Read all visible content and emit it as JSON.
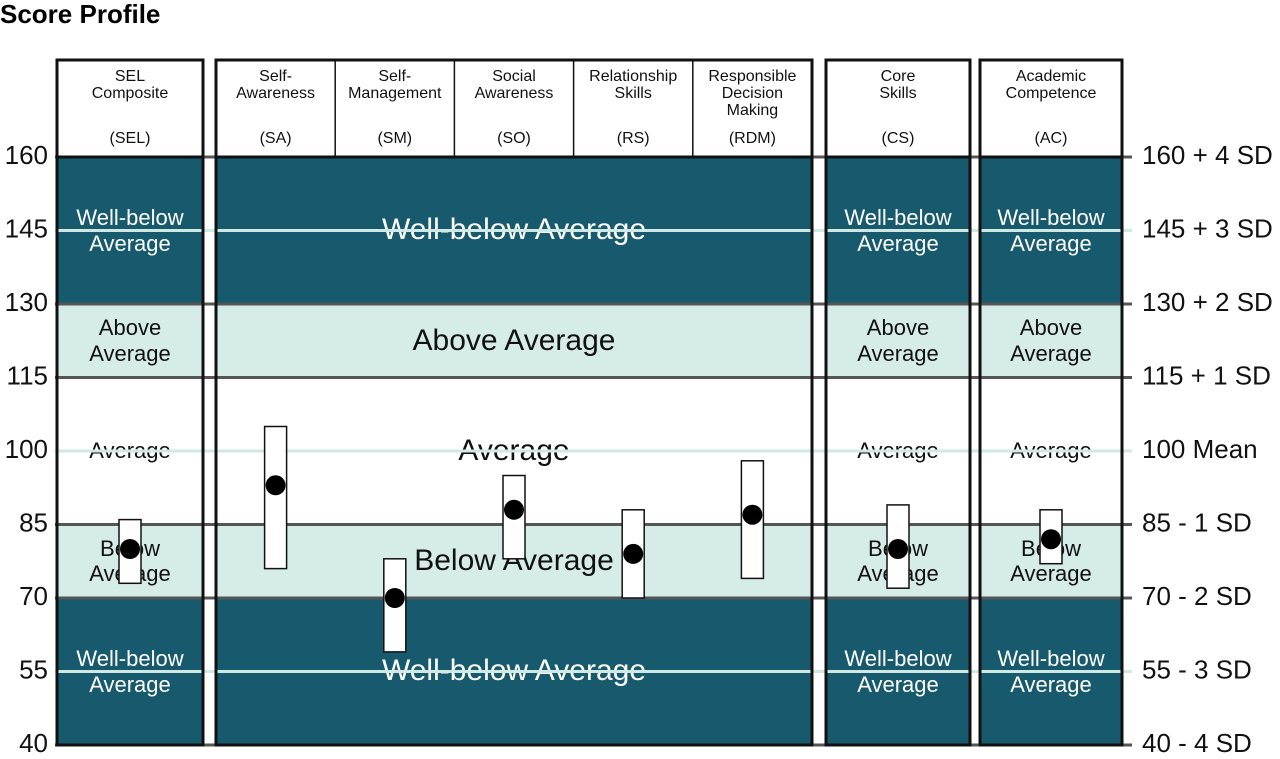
{
  "title": "Score Profile",
  "chart_data": {
    "type": "range-dot",
    "ylim": [
      40,
      160
    ],
    "yticks": [
      160,
      145,
      130,
      115,
      100,
      85,
      70,
      55,
      40
    ],
    "y2lim": [
      40,
      160
    ],
    "y2ticks": [
      {
        "value": 160,
        "label": "160 + 4 SD"
      },
      {
        "value": 145,
        "label": "145 + 3 SD"
      },
      {
        "value": 130,
        "label": "130 + 2 SD"
      },
      {
        "value": 115,
        "label": "115 + 1 SD"
      },
      {
        "value": 100,
        "label": "100 Mean"
      },
      {
        "value": 85,
        "label": "85 - 1 SD"
      },
      {
        "value": 70,
        "label": "70 - 2 SD"
      },
      {
        "value": 55,
        "label": "55 - 3 SD"
      },
      {
        "value": 40,
        "label": "40 - 4 SD"
      }
    ],
    "grid": true,
    "bands": [
      {
        "label": "Well-below Average",
        "range": [
          130,
          160
        ],
        "color": "#175a6e",
        "text_color": "#ffffff"
      },
      {
        "label": "Above Average",
        "range": [
          115,
          130
        ],
        "color": "#d6ece7",
        "text_color": "#111111"
      },
      {
        "label": "Average",
        "range": [
          85,
          115
        ],
        "color": "#ffffff",
        "text_color": "#111111"
      },
      {
        "label": "Below Average",
        "range": [
          70,
          85
        ],
        "color": "#d6ece7",
        "text_color": "#111111"
      },
      {
        "label": "Well-below Average",
        "range": [
          40,
          70
        ],
        "color": "#175a6e",
        "text_color": "#ffffff"
      }
    ],
    "panels": [
      {
        "scales": [
          {
            "name_lines": [
              "SEL",
              "Composite"
            ],
            "abbr": "(SEL)",
            "score": 80,
            "low": 73,
            "high": 86
          }
        ]
      },
      {
        "scales": [
          {
            "name_lines": [
              "Self-",
              "Awareness"
            ],
            "abbr": "(SA)",
            "score": 93,
            "low": 76,
            "high": 105
          },
          {
            "name_lines": [
              "Self-",
              "Management"
            ],
            "abbr": "(SM)",
            "score": 70,
            "low": 59,
            "high": 78
          },
          {
            "name_lines": [
              "Social",
              "Awareness"
            ],
            "abbr": "(SO)",
            "score": 88,
            "low": 78,
            "high": 95
          },
          {
            "name_lines": [
              "Relationship",
              "Skills"
            ],
            "abbr": "(RS)",
            "score": 79,
            "low": 70,
            "high": 88
          },
          {
            "name_lines": [
              "Responsible",
              "Decision",
              "Making"
            ],
            "abbr": "(RDM)",
            "score": 87,
            "low": 74,
            "high": 98
          }
        ]
      },
      {
        "scales": [
          {
            "name_lines": [
              "Core",
              "Skills"
            ],
            "abbr": "(CS)",
            "score": 80,
            "low": 72,
            "high": 89
          }
        ]
      },
      {
        "scales": [
          {
            "name_lines": [
              "Academic",
              "Competence"
            ],
            "abbr": "(AC)",
            "score": 82,
            "low": 77,
            "high": 88
          }
        ]
      }
    ]
  }
}
